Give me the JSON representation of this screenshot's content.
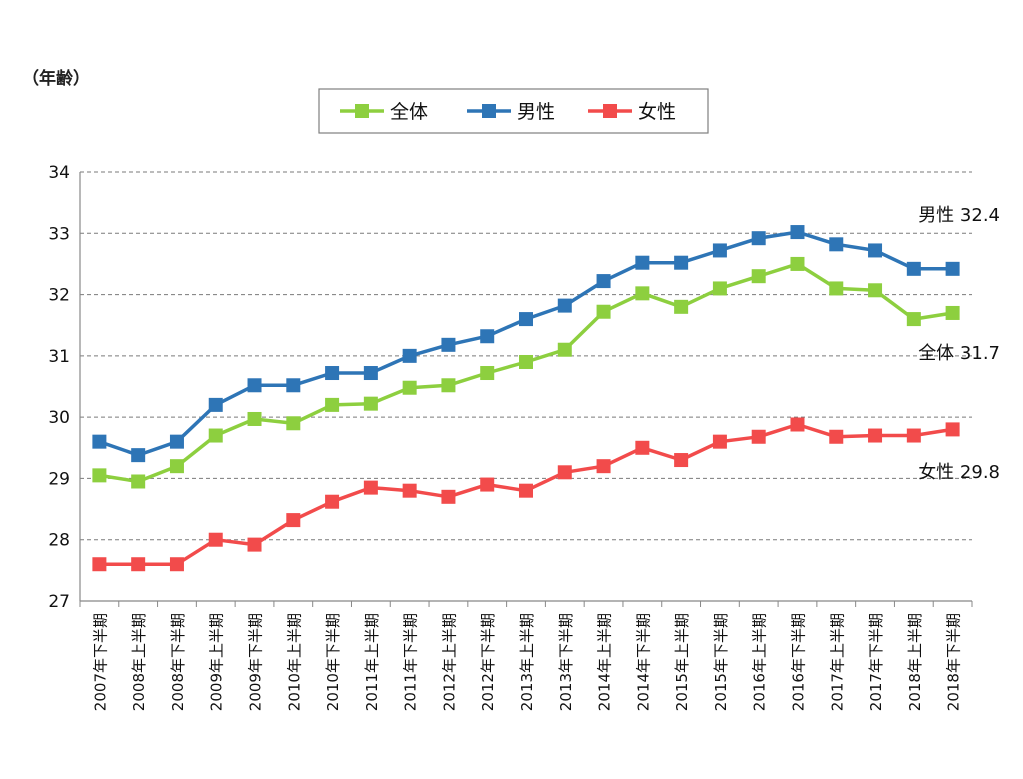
{
  "chart_data": {
    "type": "line",
    "ylabel": "（年齢）",
    "ylim": [
      27,
      34
    ],
    "yticks": [
      "27",
      "28",
      "29",
      "30",
      "31",
      "32",
      "33",
      "34"
    ],
    "grid": "horizontal-dashed",
    "legend_position": "top-center",
    "categories": [
      "2007年下半期",
      "2008年上半期",
      "2008年下半期",
      "2009年上半期",
      "2009年下半期",
      "2010年上半期",
      "2010年下半期",
      "2011年上半期",
      "2011年下半期",
      "2012年上半期",
      "2012年下半期",
      "2013年上半期",
      "2013年下半期",
      "2014年上半期",
      "2014年下半期",
      "2015年上半期",
      "2015年下半期",
      "2016年上半期",
      "2016年下半期",
      "2017年上半期",
      "2017年下半期",
      "2018年上半期",
      "2018年下半期"
    ],
    "series": [
      {
        "name": "全体",
        "color": "#8DCF3F",
        "values": [
          29.05,
          28.95,
          29.2,
          29.7,
          29.97,
          29.9,
          30.2,
          30.22,
          30.48,
          30.52,
          30.72,
          30.9,
          31.1,
          31.72,
          32.02,
          31.8,
          32.1,
          32.3,
          32.5,
          32.1,
          32.07,
          31.6,
          31.7
        ]
      },
      {
        "name": "男性",
        "color": "#2E75B6",
        "values": [
          29.6,
          29.38,
          29.6,
          30.2,
          30.52,
          30.52,
          30.72,
          30.72,
          31.0,
          31.18,
          31.32,
          31.6,
          31.82,
          32.22,
          32.52,
          32.52,
          32.72,
          32.92,
          33.02,
          32.82,
          32.72,
          32.42,
          32.42
        ]
      },
      {
        "name": "女性",
        "color": "#F24B4B",
        "values": [
          27.6,
          27.6,
          27.6,
          28.0,
          27.92,
          28.32,
          28.62,
          28.85,
          28.8,
          28.7,
          28.9,
          28.8,
          29.1,
          29.2,
          29.5,
          29.3,
          29.6,
          29.68,
          29.88,
          29.68,
          29.7,
          29.7,
          29.8
        ]
      }
    ],
    "annotations": [
      {
        "name": "annotation-male",
        "text": "男性 32.4"
      },
      {
        "name": "annotation-all",
        "text": "全体 31.7"
      },
      {
        "name": "annotation-female",
        "text": "女性 29.8"
      }
    ]
  }
}
